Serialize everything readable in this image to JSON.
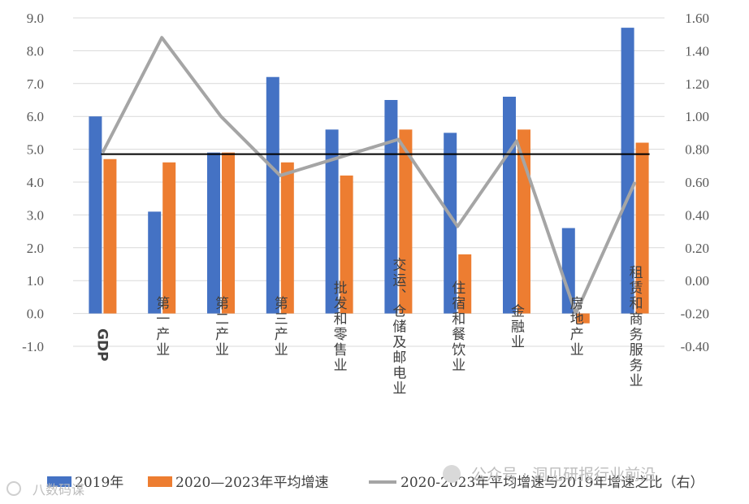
{
  "chart_data": {
    "type": "bar",
    "categories": [
      "GDP",
      "第一产业",
      "第二产业",
      "第三产业",
      "批发和零售业",
      "交运、仓储及邮电业",
      "住宿和餐饮业",
      "金融业",
      "房地产业",
      "租赁和商务服务业"
    ],
    "series": [
      {
        "name": "2019年",
        "type": "bar",
        "axis": "left",
        "color": "#4472C4",
        "values": [
          6.0,
          3.1,
          4.9,
          7.2,
          5.6,
          6.5,
          5.5,
          6.6,
          2.6,
          8.7
        ]
      },
      {
        "name": "2020—2023年平均增速",
        "type": "bar",
        "axis": "left",
        "color": "#ED7D31",
        "values": [
          4.7,
          4.6,
          4.9,
          4.6,
          4.2,
          5.6,
          1.8,
          5.6,
          -0.3,
          5.2
        ]
      },
      {
        "name": "2020-2023年平均增速与2019年增速之比（右）",
        "type": "line",
        "axis": "right",
        "color": "#A5A5A5",
        "values": [
          0.78,
          1.48,
          1.0,
          0.64,
          0.75,
          0.86,
          0.33,
          0.85,
          -0.2,
          0.6
        ]
      }
    ],
    "reference_line": {
      "axis": "right",
      "value": 0.77,
      "color": "#000000"
    },
    "y_left": {
      "min": -1.0,
      "max": 9.0,
      "step": 1.0,
      "ticks": [
        "9.0",
        "8.0",
        "7.0",
        "6.0",
        "5.0",
        "4.0",
        "3.0",
        "2.0",
        "1.0",
        "0.0",
        "-1.0"
      ]
    },
    "y_right": {
      "min": -0.4,
      "max": 1.6,
      "step": 0.2,
      "ticks": [
        "1.60",
        "1.40",
        "1.20",
        "1.00",
        "0.80",
        "0.60",
        "0.40",
        "0.20",
        "0.00",
        "-0.20",
        "-0.40"
      ]
    },
    "grid": true,
    "legend_position": "bottom"
  },
  "watermarks": {
    "left": "八数码谋",
    "right": "公众号 · 洞见研报行业前沿"
  },
  "legend": {
    "item1": "2019年",
    "item2": "2020—2023年平均增速",
    "item3": "2020-2023年平均增速与2019年增速之比（右）"
  }
}
